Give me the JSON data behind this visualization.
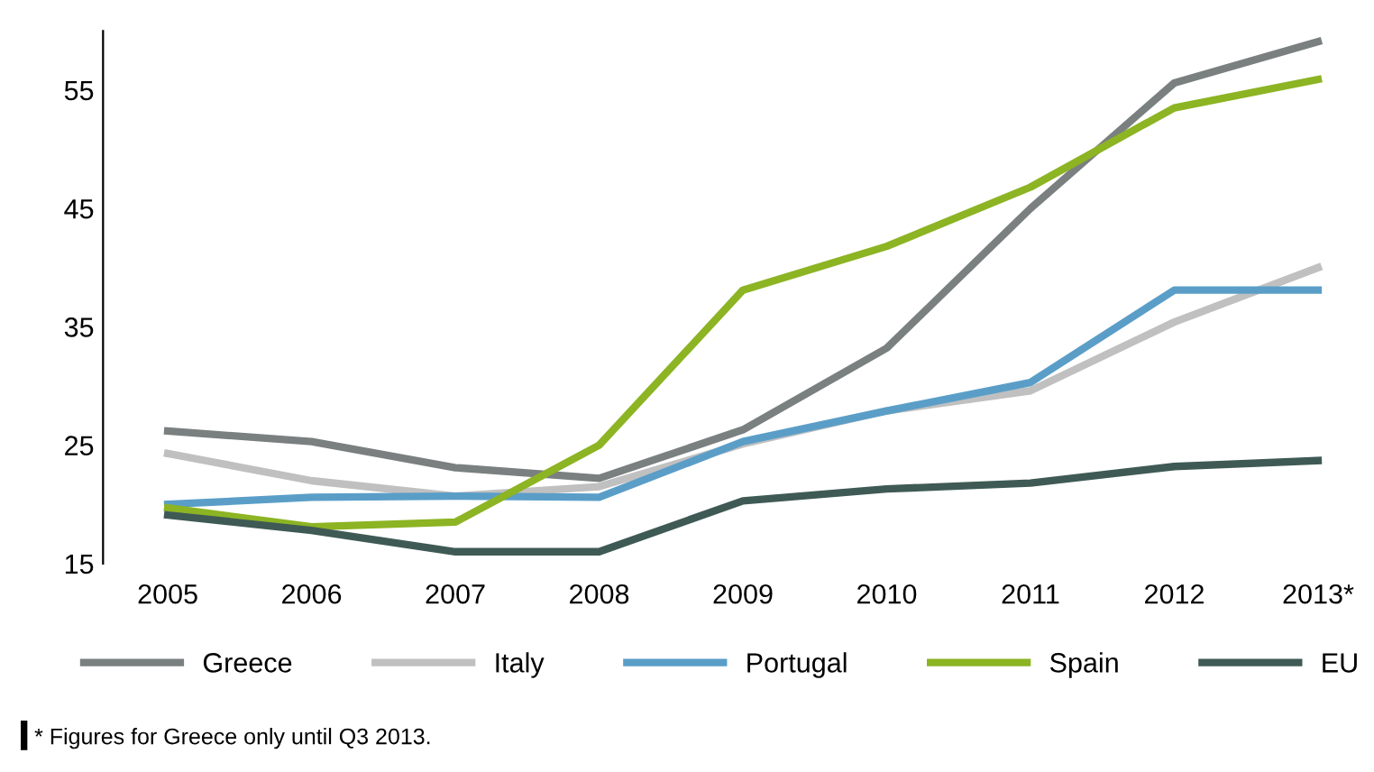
{
  "chart_data": {
    "type": "line",
    "categories": [
      "2005",
      "2006",
      "2007",
      "2008",
      "2009",
      "2010",
      "2011",
      "2012",
      "2013*"
    ],
    "series": [
      {
        "name": "Greece",
        "color": "#7a7f80",
        "values": [
          26.2,
          25.3,
          23.1,
          22.2,
          26.3,
          33.2,
          45,
          55.6,
          59.1
        ]
      },
      {
        "name": "Italy",
        "color": "#c0c0c0",
        "values": [
          24.3,
          22,
          20.7,
          21.5,
          25.1,
          27.9,
          29.6,
          35.4,
          40
        ]
      },
      {
        "name": "Portugal",
        "color": "#5a9ec8",
        "values": [
          20,
          20.6,
          20.7,
          20.6,
          25.3,
          27.9,
          30.3,
          38.1,
          38.1
        ]
      },
      {
        "name": "Spain",
        "color": "#8cb423",
        "values": [
          19.7,
          18.1,
          18.5,
          25,
          38.1,
          41.8,
          46.8,
          53.5,
          55.9
        ]
      },
      {
        "name": "EU",
        "color": "#3f5a55",
        "values": [
          19.1,
          17.8,
          16,
          16,
          20.3,
          21.3,
          21.8,
          23.2,
          23.7
        ]
      }
    ],
    "ylim": [
      15,
      60
    ],
    "yticks": [
      15,
      25,
      35,
      45,
      55
    ],
    "grid": false,
    "legend": "bottom",
    "marker": "none",
    "line_style": "solid",
    "annotations": [
      "* Figures for Greece only until Q3 2013."
    ]
  }
}
